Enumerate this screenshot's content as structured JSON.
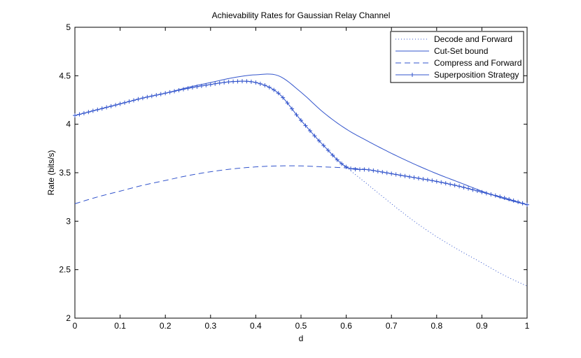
{
  "chart_data": {
    "type": "line",
    "title": "Achievability Rates for Gaussian Relay Channel",
    "xlabel": "d",
    "ylabel": "Rate (bits/s)",
    "xlim": [
      0,
      1
    ],
    "ylim": [
      2,
      5
    ],
    "xticks": [
      "0",
      "0.1",
      "0.2",
      "0.3",
      "0.4",
      "0.5",
      "0.6",
      "0.7",
      "0.8",
      "0.9",
      "1"
    ],
    "yticks": [
      "2",
      "2.5",
      "3",
      "3.5",
      "4",
      "4.5",
      "5"
    ],
    "grid": false,
    "legend_position": "top-right",
    "x": [
      0,
      0.05,
      0.1,
      0.15,
      0.2,
      0.25,
      0.3,
      0.35,
      0.4,
      0.45,
      0.5,
      0.55,
      0.6,
      0.65,
      0.7,
      0.75,
      0.8,
      0.85,
      0.9,
      0.95,
      1
    ],
    "series": [
      {
        "name": "Decode and Forward",
        "style": "dotted",
        "color": "#3355cc",
        "values": [
          4.09,
          4.15,
          4.21,
          4.27,
          4.32,
          4.37,
          4.41,
          4.44,
          4.43,
          4.32,
          4.04,
          3.78,
          3.56,
          3.37,
          3.18,
          3.0,
          2.84,
          2.7,
          2.57,
          2.44,
          2.33
        ]
      },
      {
        "name": "Cut-Set bound",
        "style": "solid",
        "color": "#3355cc",
        "values": [
          4.09,
          4.15,
          4.21,
          4.27,
          4.32,
          4.38,
          4.43,
          4.48,
          4.51,
          4.5,
          4.33,
          4.12,
          3.95,
          3.82,
          3.7,
          3.59,
          3.49,
          3.4,
          3.31,
          3.23,
          3.17
        ]
      },
      {
        "name": "Compress and Forward",
        "style": "dashed",
        "color": "#3355cc",
        "values": [
          3.18,
          3.25,
          3.31,
          3.37,
          3.42,
          3.47,
          3.51,
          3.54,
          3.56,
          3.57,
          3.57,
          3.56,
          3.55,
          3.53,
          3.49,
          3.45,
          3.41,
          3.36,
          3.3,
          3.24,
          3.17
        ]
      },
      {
        "name": "Superposition Strategy",
        "style": "solid-plus",
        "color": "#3355cc",
        "values": [
          4.09,
          4.15,
          4.21,
          4.27,
          4.32,
          4.37,
          4.41,
          4.44,
          4.43,
          4.32,
          4.04,
          3.78,
          3.56,
          3.53,
          3.49,
          3.45,
          3.41,
          3.36,
          3.3,
          3.24,
          3.17
        ]
      }
    ]
  }
}
